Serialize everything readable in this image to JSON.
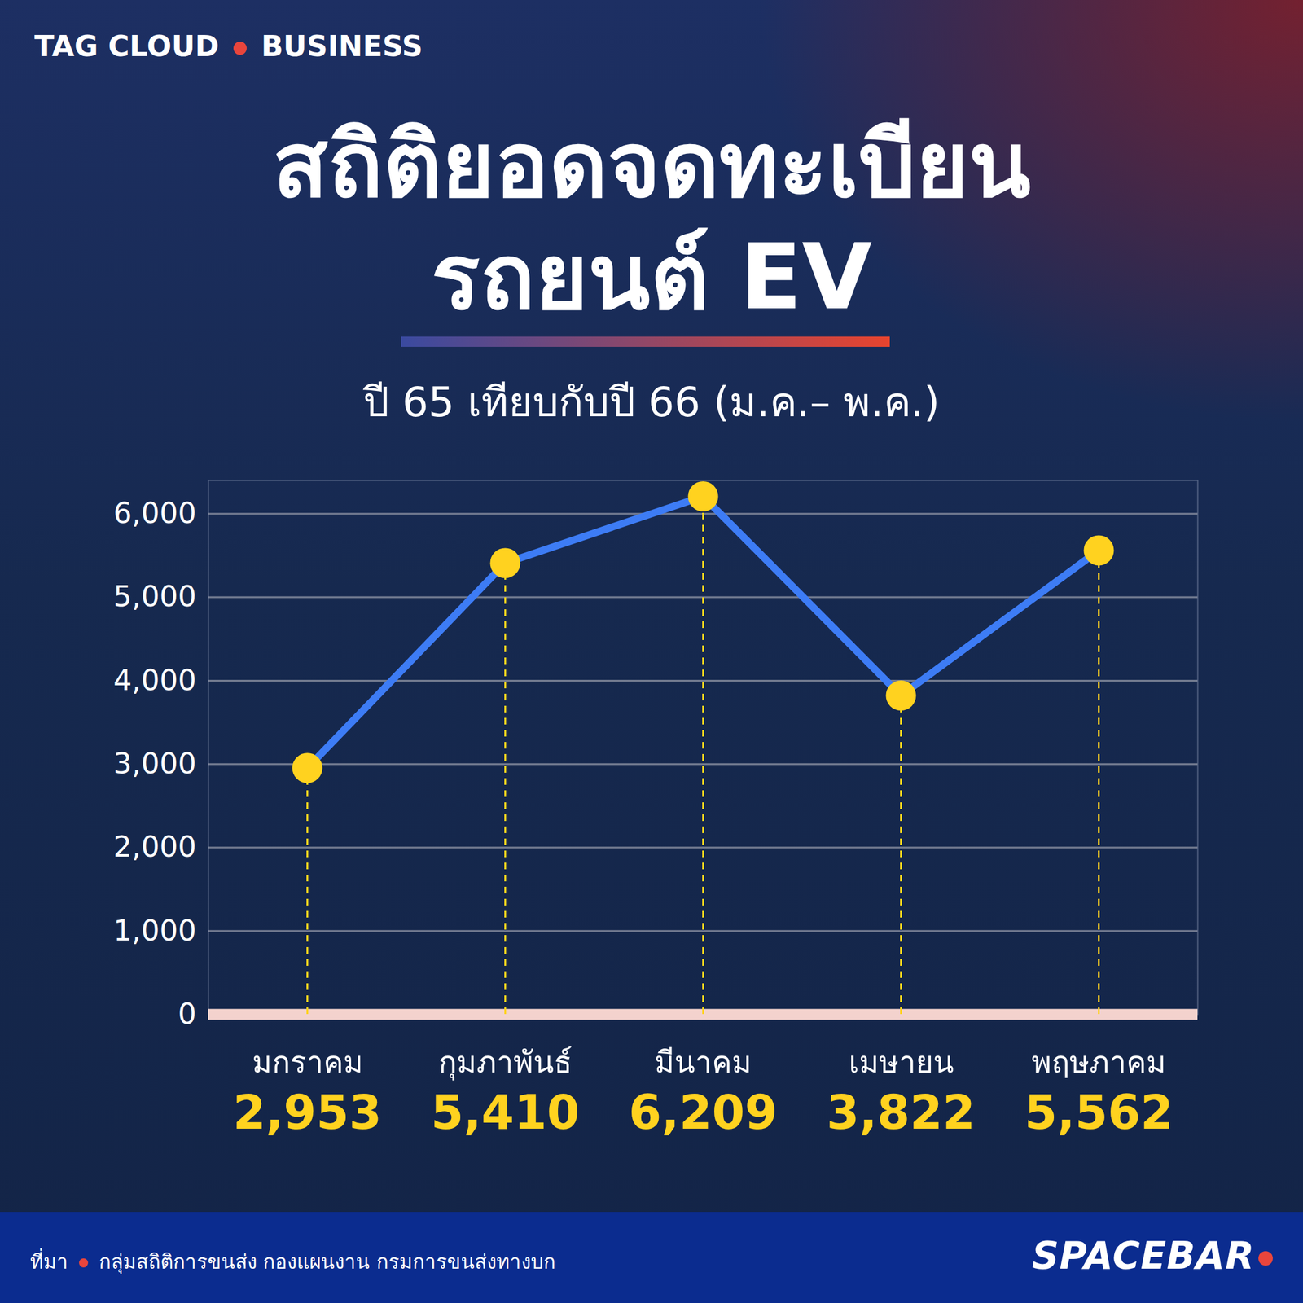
{
  "chart_data": {
    "type": "line",
    "kicker": [
      "TAG CLOUD",
      "BUSINESS"
    ],
    "title": "สถิติยอดจดทะเบียน\nรถยนต์ EV",
    "subtitle": "ปี 65 เทียบกับปี 66 (ม.ค.– พ.ค.)",
    "categories": [
      "มกราคม",
      "กุมภาพันธ์",
      "มีนาคม",
      "เมษายน",
      "พฤษภาคม"
    ],
    "values": [
      2953,
      5410,
      6209,
      3822,
      5562
    ],
    "value_labels": [
      "2,953",
      "5,410",
      "6,209",
      "3,822",
      "5,562"
    ],
    "data_labels": true,
    "color": "#3d7cf5",
    "marker": "circle",
    "ylim": [
      0,
      6400
    ],
    "yticks": [
      0,
      {
        "value": 1000,
        "label": "1,000"
      },
      {
        "value": 2000,
        "label": "2,000"
      },
      {
        "value": 3000,
        "label": "3,000"
      },
      {
        "value": 4000,
        "label": "4,000"
      },
      {
        "value": 5000,
        "label": "5,000"
      },
      {
        "value": 6000,
        "label": "6,000"
      }
    ],
    "grid": true,
    "source_label": "ที่มา",
    "source": "กลุ่มสถิติการขนส่ง กองแผนงาน กรมการขนส่งทางบก",
    "brand": "SPACEBAR"
  }
}
